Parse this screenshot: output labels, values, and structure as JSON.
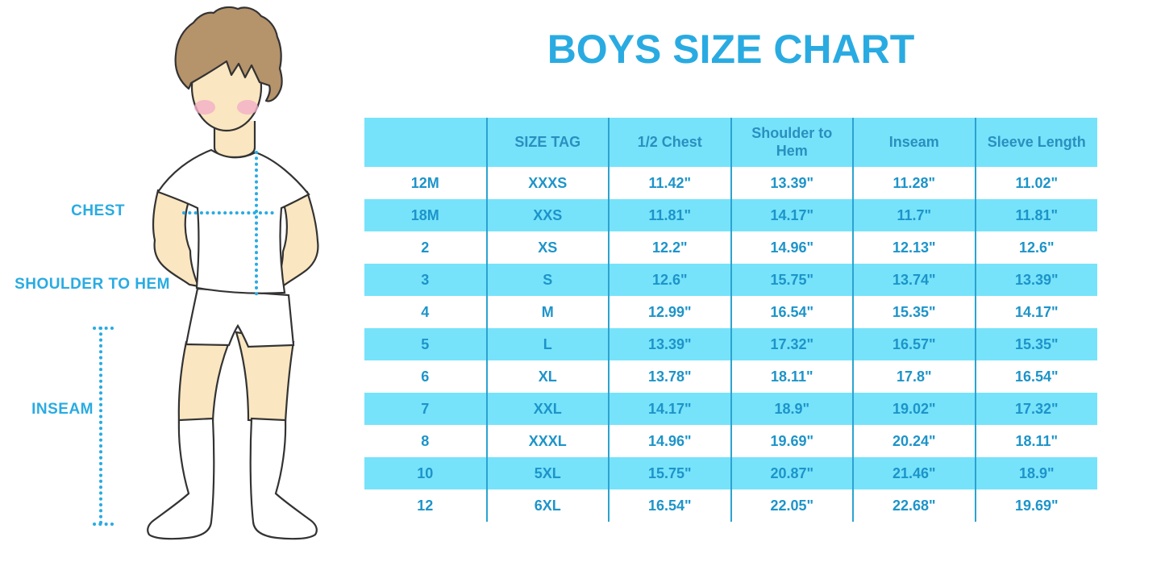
{
  "title": "BOYS SIZE CHART",
  "figure": {
    "description": "Outlined cartoon boy wearing a white t-shirt, white shorts and white knee socks, with dotted measurement guide lines",
    "labels": {
      "chest": "CHEST",
      "shoulder_to_hem": "SHOULDER TO HEM",
      "inseam": "INSEAM"
    }
  },
  "chart_data": {
    "type": "table",
    "title": "BOYS SIZE CHART",
    "columns": [
      "",
      "SIZE TAG",
      "1/2 Chest",
      "Shoulder to Hem",
      "Inseam",
      "Sleeve Length"
    ],
    "rows": [
      [
        "12M",
        "XXXS",
        "11.42\"",
        "13.39\"",
        "11.28\"",
        "11.02\""
      ],
      [
        "18M",
        "XXS",
        "11.81\"",
        "14.17\"",
        "11.7\"",
        "11.81\""
      ],
      [
        "2",
        "XS",
        "12.2\"",
        "14.96\"",
        "12.13\"",
        "12.6\""
      ],
      [
        "3",
        "S",
        "12.6\"",
        "15.75\"",
        "13.74\"",
        "13.39\""
      ],
      [
        "4",
        "M",
        "12.99\"",
        "16.54\"",
        "15.35\"",
        "14.17\""
      ],
      [
        "5",
        "L",
        "13.39\"",
        "17.32\"",
        "16.57\"",
        "15.35\""
      ],
      [
        "6",
        "XL",
        "13.78\"",
        "18.11\"",
        "17.8\"",
        "16.54\""
      ],
      [
        "7",
        "XXL",
        "14.17\"",
        "18.9\"",
        "19.02\"",
        "17.32\""
      ],
      [
        "8",
        "XXXL",
        "14.96\"",
        "19.69\"",
        "20.24\"",
        "18.11\""
      ],
      [
        "10",
        "5XL",
        "15.75\"",
        "20.87\"",
        "21.46\"",
        "18.9\""
      ],
      [
        "12",
        "6XL",
        "16.54\"",
        "22.05\"",
        "22.68\"",
        "19.69\""
      ]
    ],
    "row_stripe_pattern": "alternating white and cyan, first data row white",
    "grid": "vertical column separator lines only",
    "legend_position": "none"
  },
  "colors": {
    "accent_blue": "#29ABE2",
    "table_text": "#1D94C9",
    "header_text": "#2A8FBE",
    "stripe_cyan": "#76E3FB",
    "column_line": "#2BA3D1",
    "skin": "#FAE6C0",
    "hair": "#B5936B",
    "outline": "#333333",
    "cheek_pink": "#F2AFC7",
    "background": "#FFFFFF"
  }
}
